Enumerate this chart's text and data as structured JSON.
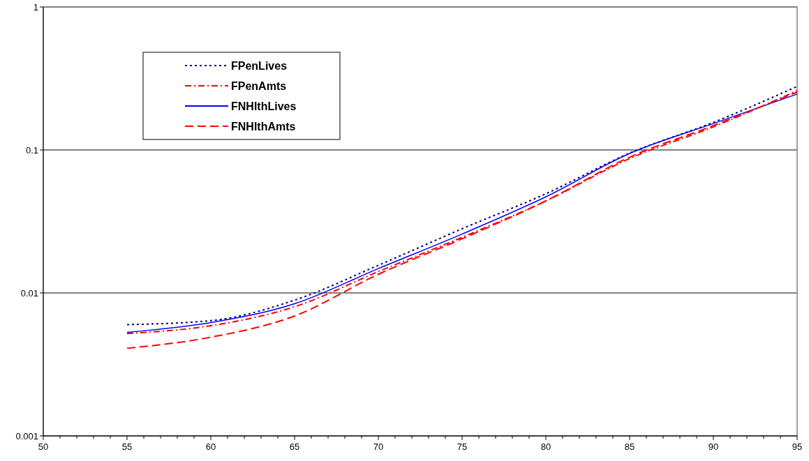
{
  "chart_data": {
    "type": "line",
    "x": [
      55,
      60,
      65,
      70,
      75,
      80,
      85,
      90,
      95
    ],
    "series": [
      {
        "name": "FPenLives",
        "color": "#000080",
        "line_style": "dotted",
        "values": [
          0.006,
          0.0064,
          0.0089,
          0.0156,
          0.0281,
          0.0494,
          0.095,
          0.156,
          0.278
        ]
      },
      {
        "name": "FPenAmts",
        "color": "#ff0000",
        "line_style": "dashdot",
        "values": [
          0.0052,
          0.0059,
          0.008,
          0.0141,
          0.0245,
          0.044,
          0.087,
          0.145,
          0.26
        ]
      },
      {
        "name": "FNHlthLives",
        "color": "#0000ff",
        "line_style": "solid",
        "values": [
          0.0053,
          0.0062,
          0.0084,
          0.0148,
          0.0258,
          0.047,
          0.0945,
          0.153,
          0.246
        ]
      },
      {
        "name": "FNHlthAmts",
        "color": "#ff0000",
        "line_style": "dashed",
        "values": [
          0.0041,
          0.0049,
          0.0069,
          0.0135,
          0.0239,
          0.044,
          0.089,
          0.148,
          0.254
        ]
      }
    ],
    "xlim": [
      50,
      95
    ],
    "xticks": [
      50,
      55,
      60,
      65,
      70,
      75,
      80,
      85,
      90,
      95
    ],
    "ylim": [
      0.001,
      1
    ],
    "yticks": [
      0.001,
      0.01,
      0.1,
      1
    ],
    "log": "y",
    "grid": "y",
    "legend": "top left",
    "marker": "none"
  }
}
